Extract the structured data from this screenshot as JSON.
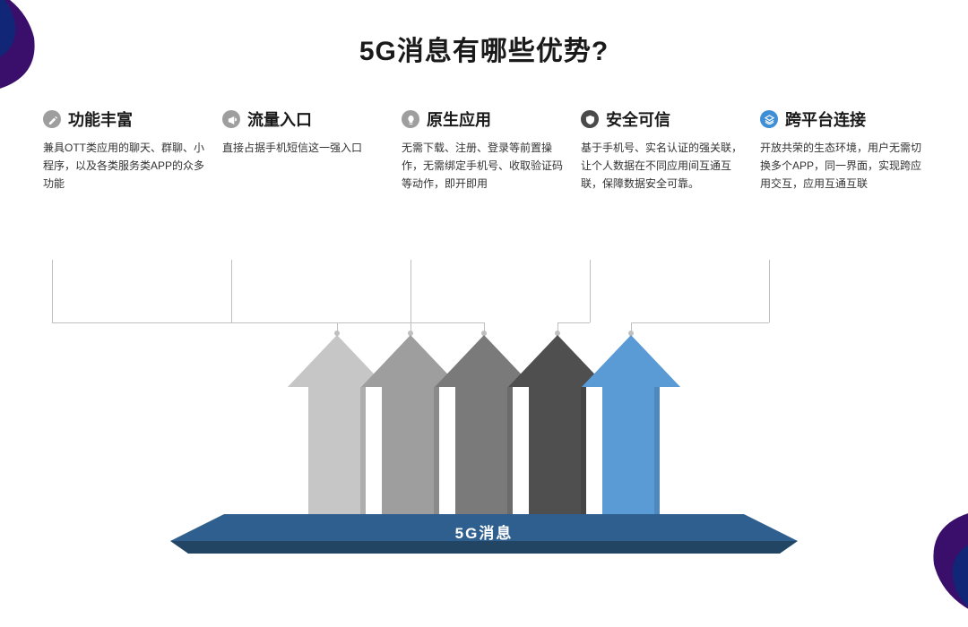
{
  "page": {
    "title": "5G消息有哪些优势?",
    "platform_label": "5G消息",
    "background": "#ffffff",
    "corner_color_1": "#3a0f6b",
    "corner_color_2": "#0c2a7a"
  },
  "columns": [
    {
      "icon": "pencil",
      "icon_bg": "#9e9e9e",
      "title": "功能丰富",
      "desc": "兼具OTT类应用的聊天、群聊、小程序，以及各类服务类APP的众多功能",
      "arrow_color": "#c6c6c6"
    },
    {
      "icon": "megaphone",
      "icon_bg": "#9e9e9e",
      "title": "流量入口",
      "desc": "直接占据手机短信这一强入口",
      "arrow_color": "#9e9e9e"
    },
    {
      "icon": "bulb",
      "icon_bg": "#9e9e9e",
      "title": "原生应用",
      "desc": "无需下载、注册、登录等前置操作，无需绑定手机号、收取验证码等动作，即开即用",
      "arrow_color": "#7a7a7a"
    },
    {
      "icon": "shield",
      "icon_bg": "#4a4a4a",
      "title": "安全可信",
      "desc": "基于手机号、实名认证的强关联，让个人数据在不同应用间互通互联，保障数据安全可靠。",
      "arrow_color": "#4f4f4f"
    },
    {
      "icon": "layers",
      "icon_bg": "#3f8fd6",
      "title": "跨平台连接",
      "desc": "开放共荣的生态环境，用户无需切换多个APP，同一界面，实现跨应用交互，应用互通互联",
      "arrow_color": "#5b9bd5"
    }
  ],
  "diagram": {
    "arrow_width_body": 64,
    "arrow_width_head": 110,
    "arrow_height": 208,
    "arrow_overlap": 82,
    "platform_top_color": "#2f5f8f",
    "platform_side_color": "#214563",
    "connector_color": "#bfbfbf"
  }
}
